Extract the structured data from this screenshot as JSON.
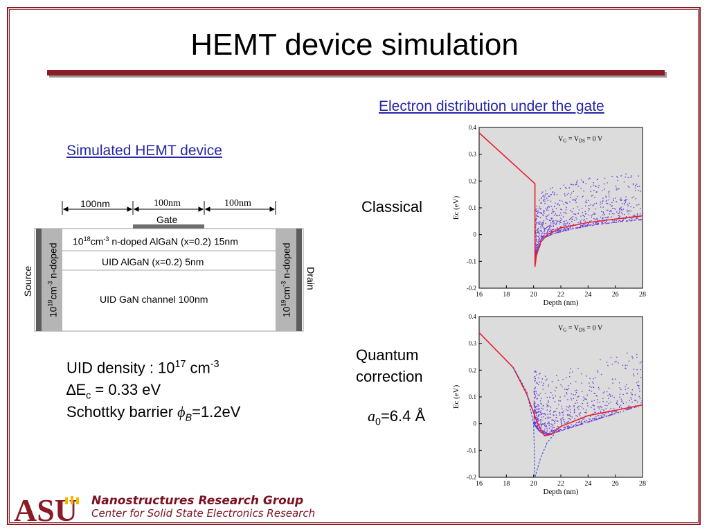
{
  "title": "HEMT device simulation",
  "left_heading": "Simulated HEMT device",
  "right_heading": "Electron distribution under the gate",
  "device": {
    "dim_left": "100nm",
    "dim_mid": "100nm",
    "dim_right": "100nm",
    "gate": "Gate",
    "layer1": "cm",
    "layer1_prefix": "10",
    "layer1_exp": "18",
    "layer1_exp2": "-3",
    "layer1_rest": " n-doped AlGaN (x=0.2) 15nm",
    "layer2": "UID AlGaN (x=0.2) 5nm",
    "layer3": "UID GaN channel  100nm",
    "source": "Source",
    "drain": "Drain",
    "contact_base": "10",
    "contact_exp": "19",
    "contact_cm": "cm",
    "contact_exp2": "-3",
    "contact_rest": " n-doped"
  },
  "params": {
    "uid_label": "UID density : 10",
    "uid_exp": "17",
    "uid_unit": " cm",
    "uid_unit_exp": "-3",
    "delta": "∆E",
    "delta_sub": "c",
    "delta_rest": " = 0.33 eV",
    "schottky": "Schottky barrier ",
    "phi": "ϕ",
    "phi_sub": "B",
    "schottky_rest": "=1.2eV"
  },
  "labels": {
    "classical": "Classical",
    "quantum1": "Quantum",
    "quantum2": "correction",
    "a0_a": "a",
    "a0_sub": "0",
    "a0_rest": "=6.4 Å"
  },
  "footer": {
    "group": "Nanostructures Research Group",
    "center": "Center for Solid State Electronics Research",
    "logo": "ASU"
  },
  "colors": {
    "accent": "#8a1c26",
    "link": "#2626a6",
    "curve": "#e8202a",
    "dots": "#6a3cd8",
    "plotbg": "#dcdcdc"
  },
  "chart_data": [
    {
      "type": "scatter",
      "xlabel": "Depth (nm)",
      "ylabel": "Ec (eV)",
      "annotation": "V_G = V_DS = 0 V",
      "xlim": [
        16,
        28
      ],
      "ylim": [
        -0.2,
        0.4
      ],
      "xticks": [
        "16",
        "18",
        "20",
        "22",
        "24",
        "26",
        "28"
      ],
      "yticks": [
        "0.4",
        "0.3",
        "0.2",
        "0.1",
        "0",
        "-0.1",
        "-0.2"
      ],
      "series": [
        {
          "kind": "line",
          "x": [
            16,
            20.1,
            20.1,
            20.2,
            20.5,
            21,
            22,
            24,
            26,
            28
          ],
          "y": [
            0.38,
            0.19,
            -0.12,
            -0.08,
            -0.03,
            0.0,
            0.025,
            0.045,
            0.058,
            0.07
          ]
        }
      ]
    },
    {
      "type": "scatter",
      "xlabel": "Depth (nm)",
      "ylabel": "Ec (eV)",
      "annotation": "V_G = V_DS = 0 V",
      "xlim": [
        16,
        28
      ],
      "ylim": [
        -0.2,
        0.4
      ],
      "xticks": [
        "16",
        "18",
        "20",
        "22",
        "24",
        "26",
        "28"
      ],
      "yticks": [
        "0.4",
        "0.3",
        "0.2",
        "0.1",
        "0",
        "-0.1",
        "-0.2"
      ],
      "series": [
        {
          "kind": "line",
          "x": [
            16,
            18.5,
            19.5,
            20.3,
            20.8,
            21.3,
            22,
            24,
            26,
            28
          ],
          "y": [
            0.34,
            0.21,
            0.11,
            0.0,
            -0.045,
            -0.04,
            -0.01,
            0.03,
            0.05,
            0.07
          ]
        },
        {
          "kind": "dashed",
          "x": [
            18.5,
            19.5,
            20.0,
            20.1,
            20.5,
            21,
            21.5
          ],
          "y": [
            0.21,
            0.12,
            0.0,
            -0.2,
            -0.13,
            -0.07,
            -0.04
          ]
        }
      ]
    }
  ]
}
